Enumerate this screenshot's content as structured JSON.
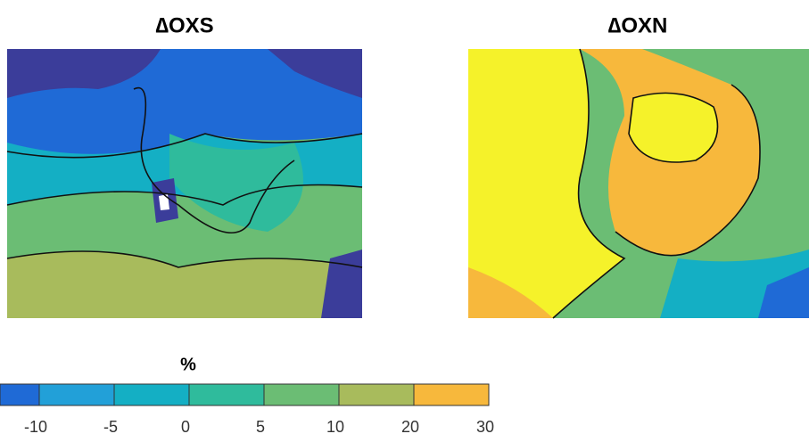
{
  "chart_data": {
    "type": "contour",
    "panels": [
      {
        "title": "∆OXS"
      },
      {
        "title": "∆OXN"
      }
    ],
    "colorbar": {
      "label": "%",
      "ticks": [
        -10,
        -5,
        0,
        5,
        10,
        20,
        30
      ],
      "colors": [
        "#1f6ad6",
        "#22a0d8",
        "#14afc4",
        "#2fbb9c",
        "#6bbd74",
        "#a8bb5c",
        "#f7b83c"
      ]
    }
  }
}
